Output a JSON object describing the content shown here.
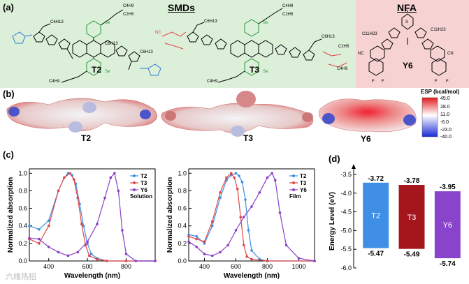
{
  "panel_a": {
    "label": "(a)",
    "smds_title": "SMDs",
    "nfa_title": "NFA",
    "molecules": [
      "T2",
      "T3",
      "Y6"
    ],
    "substituents": {
      "c6h13": "C6H13",
      "c4h9": "C4H9",
      "c2h5": "C2H5",
      "c11h23": "C11H23",
      "se": "Se",
      "nc": "NC",
      "cn": "CN",
      "s": "S",
      "f": "F",
      "n": "N"
    }
  },
  "panel_b": {
    "label": "(b)",
    "molecules": [
      "T2",
      "T3",
      "Y6"
    ],
    "colorbar_title": "ESP (kcal/mol)",
    "colorbar_ticks": [
      "45.0",
      "28.0",
      "11.0",
      "-6.0",
      "-23.0",
      "-40.0"
    ]
  },
  "chart_data": [
    {
      "type": "line",
      "panel": "(c)",
      "annotation": "Solution",
      "xlabel": "Wavelength (nm)",
      "ylabel": "Normalized absorption",
      "xlim": [
        300,
        950
      ],
      "ylim": [
        0,
        1.05
      ],
      "xticks": [
        400,
        600,
        800
      ],
      "yticks": [
        0.0,
        0.2,
        0.4,
        0.6,
        0.8,
        1.0
      ],
      "legend": "top-right",
      "series": [
        {
          "name": "T2",
          "color": "#3c8fe0",
          "x": [
            300,
            350,
            400,
            450,
            480,
            500,
            520,
            540,
            560,
            580,
            600,
            620,
            650,
            700,
            800,
            950
          ],
          "y": [
            0.4,
            0.36,
            0.46,
            0.8,
            0.95,
            1.0,
            0.98,
            0.88,
            0.65,
            0.4,
            0.2,
            0.08,
            0.03,
            0.0,
            0.0,
            0.0
          ]
        },
        {
          "name": "T3",
          "color": "#e04545",
          "x": [
            300,
            350,
            400,
            450,
            480,
            510,
            530,
            550,
            570,
            590,
            610,
            650,
            700,
            800,
            950
          ],
          "y": [
            0.25,
            0.2,
            0.4,
            0.8,
            0.95,
            1.0,
            0.93,
            0.72,
            0.42,
            0.18,
            0.06,
            0.02,
            0.0,
            0.0,
            0.0
          ]
        },
        {
          "name": "Y6",
          "color": "#8a3fc7",
          "x": [
            300,
            350,
            400,
            450,
            500,
            550,
            600,
            650,
            690,
            720,
            740,
            760,
            780,
            800,
            850,
            950
          ],
          "y": [
            0.26,
            0.25,
            0.16,
            0.1,
            0.06,
            0.1,
            0.22,
            0.42,
            0.72,
            0.95,
            1.0,
            0.8,
            0.35,
            0.08,
            0.0,
            0.0
          ]
        }
      ]
    },
    {
      "type": "line",
      "panel": "(c)",
      "annotation": "Film",
      "xlabel": "Wavelength (nm)",
      "ylabel": "Normalized absorption",
      "xlim": [
        300,
        1100
      ],
      "ylim": [
        0,
        1.05
      ],
      "xticks": [
        400,
        600,
        800,
        1000
      ],
      "yticks": [
        0.0,
        0.2,
        0.4,
        0.6,
        0.8,
        1.0
      ],
      "legend": "top-right",
      "series": [
        {
          "name": "T2",
          "color": "#3c8fe0",
          "x": [
            300,
            350,
            400,
            450,
            500,
            540,
            570,
            600,
            620,
            640,
            660,
            680,
            700,
            750,
            800,
            1100
          ],
          "y": [
            0.3,
            0.28,
            0.2,
            0.4,
            0.72,
            0.92,
            0.98,
            1.0,
            0.97,
            0.9,
            0.7,
            0.35,
            0.12,
            0.02,
            0.0,
            0.0
          ]
        },
        {
          "name": "T3",
          "color": "#e04545",
          "x": [
            300,
            350,
            400,
            450,
            500,
            540,
            570,
            590,
            610,
            630,
            650,
            670,
            700,
            800,
            1100
          ],
          "y": [
            0.28,
            0.25,
            0.22,
            0.45,
            0.78,
            0.95,
            1.0,
            0.95,
            0.82,
            0.5,
            0.18,
            0.05,
            0.02,
            0.0,
            0.0
          ]
        },
        {
          "name": "Y6",
          "color": "#8a3fc7",
          "x": [
            300,
            350,
            400,
            450,
            500,
            550,
            600,
            650,
            700,
            750,
            800,
            830,
            850,
            880,
            920,
            1000,
            1100
          ],
          "y": [
            0.22,
            0.16,
            0.08,
            0.06,
            0.1,
            0.18,
            0.35,
            0.5,
            0.62,
            0.78,
            0.95,
            1.0,
            0.92,
            0.55,
            0.18,
            0.03,
            0.0
          ]
        }
      ]
    },
    {
      "type": "bar",
      "panel": "(d)",
      "ylabel": "Energy Level (eV)",
      "ylim": [
        -6.0,
        -3.5
      ],
      "yticks": [
        -3.5,
        -4.0,
        -4.5,
        -5.0,
        -5.5,
        -6.0
      ],
      "categories": [
        "T2",
        "T3",
        "Y6"
      ],
      "lumo": [
        -3.72,
        -3.78,
        -3.95
      ],
      "homo": [
        -5.47,
        -5.49,
        -5.74
      ],
      "lumo_labels": [
        "-3.72",
        "-3.78",
        "-3.95"
      ],
      "homo_labels": [
        "-5.47",
        "-5.49",
        "-5.74"
      ],
      "colors": [
        "#3f8fe6",
        "#a5161c",
        "#8a44cc"
      ]
    }
  ],
  "panel_c_label": "(c)",
  "panel_d_label": "(d)",
  "watermark": "六维热招"
}
